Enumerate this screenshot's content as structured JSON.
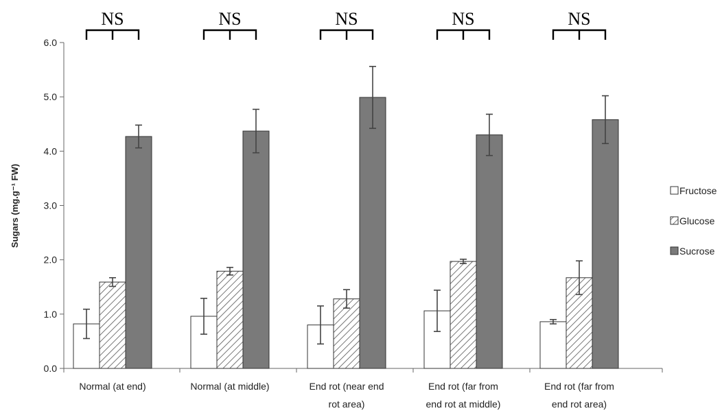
{
  "chart_data": {
    "type": "bar",
    "ylabel": "Sugars (mg.g⁻¹ FW)",
    "ylim": [
      0,
      6
    ],
    "yticks": [
      "0.0",
      "1.0",
      "2.0",
      "3.0",
      "4.0",
      "5.0",
      "6.0"
    ],
    "categories": [
      [
        "Normal  (at end)"
      ],
      [
        "Normal (at middle)"
      ],
      [
        "End rot  (near end",
        "rot area)"
      ],
      [
        "End rot (far from",
        "end rot at middle)"
      ],
      [
        "End rot  (far from",
        "end rot area)"
      ]
    ],
    "series": [
      {
        "name": "Fructose",
        "color": "#ffffff",
        "pattern": "none",
        "values": [
          0.82,
          0.96,
          0.8,
          1.06,
          0.86
        ],
        "errors": [
          0.27,
          0.33,
          0.35,
          0.38,
          0.04
        ]
      },
      {
        "name": "Glucose",
        "color": "#ffffff",
        "pattern": "hatch",
        "values": [
          1.59,
          1.79,
          1.28,
          1.97,
          1.67
        ],
        "errors": [
          0.08,
          0.07,
          0.17,
          0.04,
          0.31
        ]
      },
      {
        "name": "Sucrose",
        "color": "#7a7a7a",
        "pattern": "none",
        "values": [
          4.27,
          4.37,
          4.99,
          4.3,
          4.58
        ],
        "errors": [
          0.21,
          0.4,
          0.57,
          0.38,
          0.44
        ]
      }
    ],
    "annotations": [
      "NS",
      "NS",
      "NS",
      "NS",
      "NS"
    ],
    "legend_position": "right",
    "grid": false
  }
}
